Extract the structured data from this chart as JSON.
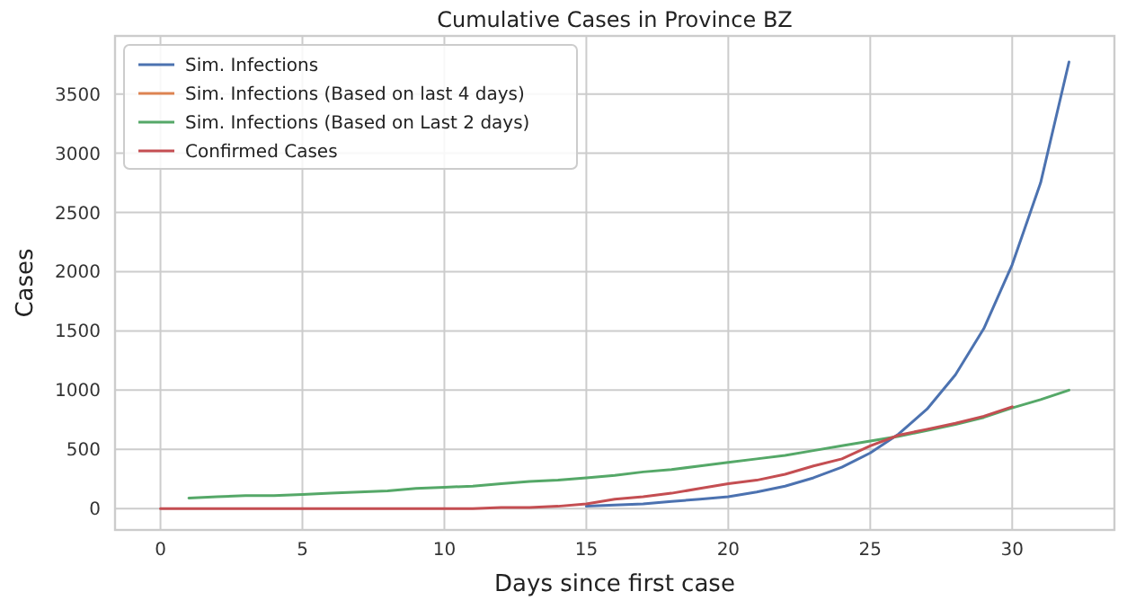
{
  "chart_data": {
    "type": "line",
    "title": "Cumulative Cases in Province BZ",
    "xlabel": "Days since first case",
    "ylabel": "Cases",
    "xlim": [
      -1.6,
      33.6
    ],
    "ylim": [
      -180,
      3990
    ],
    "xticks": [
      0,
      5,
      10,
      15,
      20,
      25,
      30
    ],
    "yticks": [
      0,
      500,
      1000,
      1500,
      2000,
      2500,
      3000,
      3500
    ],
    "grid": true,
    "legend": "top left",
    "marker": "none",
    "line_style": "solid",
    "series": [
      {
        "name": "Sim. Infections",
        "color": "#4c72b0",
        "x": [
          15,
          16,
          17,
          18,
          19,
          20,
          21,
          22,
          23,
          24,
          25,
          26,
          27,
          28,
          29,
          30,
          31,
          32
        ],
        "values": [
          20,
          30,
          40,
          60,
          80,
          100,
          140,
          190,
          260,
          350,
          470,
          630,
          840,
          1130,
          1520,
          2060,
          2750,
          3770
        ]
      },
      {
        "name": "Sim. Infections (Based on last 4 days)",
        "color": "#dd8452"
      },
      {
        "name": "Sim. Infections (Based on Last 2 days)",
        "color": "#55a868",
        "x": [
          1,
          2,
          3,
          4,
          5,
          6,
          7,
          8,
          9,
          10,
          11,
          12,
          13,
          14,
          15,
          16,
          17,
          18,
          19,
          20,
          21,
          22,
          23,
          24,
          25,
          26,
          27,
          28,
          29,
          30,
          31,
          32
        ],
        "values": [
          90,
          100,
          110,
          110,
          120,
          130,
          140,
          150,
          170,
          180,
          190,
          210,
          230,
          240,
          260,
          280,
          310,
          330,
          360,
          390,
          420,
          450,
          490,
          530,
          570,
          610,
          660,
          710,
          770,
          850,
          920,
          1000
        ]
      },
      {
        "name": "Confirmed Cases",
        "color": "#c44e52",
        "x": [
          0,
          1,
          2,
          3,
          4,
          5,
          6,
          7,
          8,
          9,
          10,
          11,
          12,
          13,
          14,
          15,
          16,
          17,
          18,
          19,
          20,
          21,
          22,
          23,
          24,
          25,
          26,
          27,
          28,
          29,
          30
        ],
        "values": [
          0,
          0,
          0,
          0,
          0,
          0,
          0,
          0,
          0,
          0,
          0,
          0,
          10,
          10,
          20,
          40,
          80,
          100,
          130,
          170,
          210,
          240,
          290,
          360,
          420,
          530,
          620,
          670,
          720,
          780,
          860
        ]
      }
    ]
  }
}
